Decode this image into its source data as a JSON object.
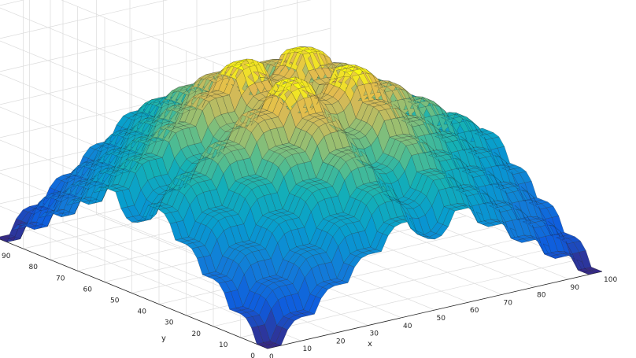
{
  "chart_data": {
    "type": "surface",
    "colormap": "parula",
    "grid": true,
    "xlabel": "x",
    "ylabel": "y",
    "zlabel": "",
    "xlim": [
      0,
      100
    ],
    "ylim": [
      0,
      100
    ],
    "x_ticks": [
      0,
      10,
      20,
      30,
      40,
      50,
      60,
      70,
      80,
      90,
      100
    ],
    "x_tick_labels": [
      "0",
      "10",
      "20",
      "30",
      "40",
      "50",
      "60",
      "70",
      "80",
      "90",
      "100"
    ],
    "y_ticks": [
      0,
      10,
      20,
      30,
      40,
      50,
      60,
      70,
      80,
      90
    ],
    "y_tick_labels": [
      "0",
      "10",
      "20",
      "30",
      "40",
      "50",
      "60",
      "70",
      "80",
      "90"
    ],
    "mesh_resolution": 101,
    "surface_description": "piecewise dome surface on a 100x100 grid with flat plateaus at grid-cell corners (levels 0,1,2,3,4 increasing from corner (0,0) to center) joined by rounded ridges"
  }
}
